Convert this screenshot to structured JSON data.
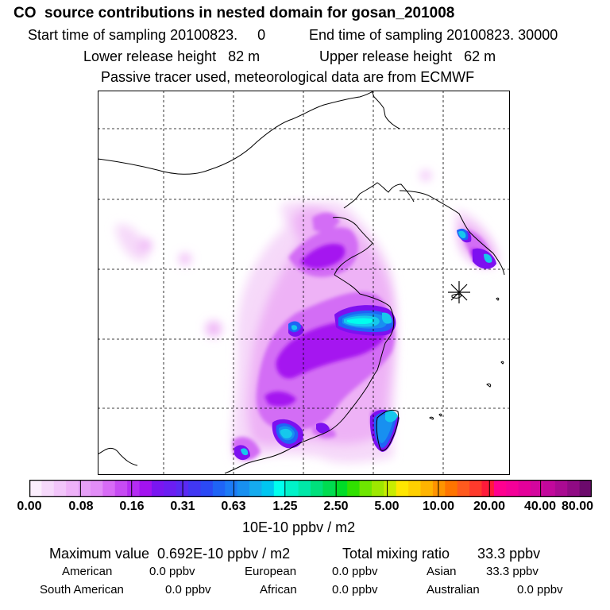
{
  "header": {
    "title": "CO  source contributions in nested domain for gosan_201008",
    "start_time": "Start time of sampling 20100823.     0",
    "end_time": "End time of sampling 20100823. 30000",
    "lower_height": "Lower release height   82 m",
    "upper_height": "Upper release height   62 m",
    "note": "Passive tracer used, meteorological data are from ECMWF"
  },
  "map": {
    "receptor_marker": "asterisk-receptor-marker",
    "grid": "dashed",
    "colors": {
      "lightest": "#f6d9f9",
      "light_pink": "#eeb2f6",
      "violet": "#d36df5",
      "purple": "#a513f0",
      "dark_purple": "#7d10f0",
      "blue": "#1f64f6",
      "mid_blue": "#1890f0",
      "cyan": "#16c8ec",
      "bright_cyan": "#00ffee"
    }
  },
  "colorbar": {
    "ticks": [
      "0.00",
      "0.08",
      "0.16",
      "0.31",
      "0.63",
      "1.25",
      "2.50",
      "5.00",
      "10.00",
      "20.00",
      "40.00",
      "80.00"
    ],
    "colors": [
      "#fbeefd",
      "#f6d9fb",
      "#f2c5fa",
      "#eeb1f8",
      "#e6a0f7",
      "#e28df7",
      "#d86bf6",
      "#c74bf3",
      "#b52cf2",
      "#a313f0",
      "#7a16f1",
      "#6b1ef2",
      "#5a2af3",
      "#4137f3",
      "#2b49f5",
      "#1f64f6",
      "#1c7bf6",
      "#1890f0",
      "#15abee",
      "#00c6f0",
      "#00ffee",
      "#00f2c8",
      "#00e8a8",
      "#00e07c",
      "#00dc50",
      "#00dc28",
      "#30e000",
      "#6ee600",
      "#9ee800",
      "#c8ec00",
      "#ffe600",
      "#ffd000",
      "#ffb400",
      "#ff9400",
      "#ff7400",
      "#ff5a1e",
      "#ff3a2c",
      "#ff1a3a",
      "#ff0090",
      "#f40098",
      "#e4009a",
      "#d4069e",
      "#c2089c",
      "#aa0a92",
      "#900a84",
      "#6c0a6c"
    ],
    "unit": "10E-10 ppbv / m2"
  },
  "footer": {
    "max_value": "Maximum value  0.692E-10 ppbv / m2",
    "total_mixing": "Total mixing ratio       33.3 ppbv",
    "american": "American",
    "american_val": "0.0 ppbv",
    "european": "European",
    "european_val": "0.0 ppbv",
    "asian": "Asian",
    "asian_val": "33.3 ppbv",
    "south_american": "South American",
    "south_american_val": "0.0 ppbv",
    "african": "African",
    "african_val": "0.0 ppbv",
    "australian": "Australian",
    "australian_val": "0.0 ppbv"
  }
}
